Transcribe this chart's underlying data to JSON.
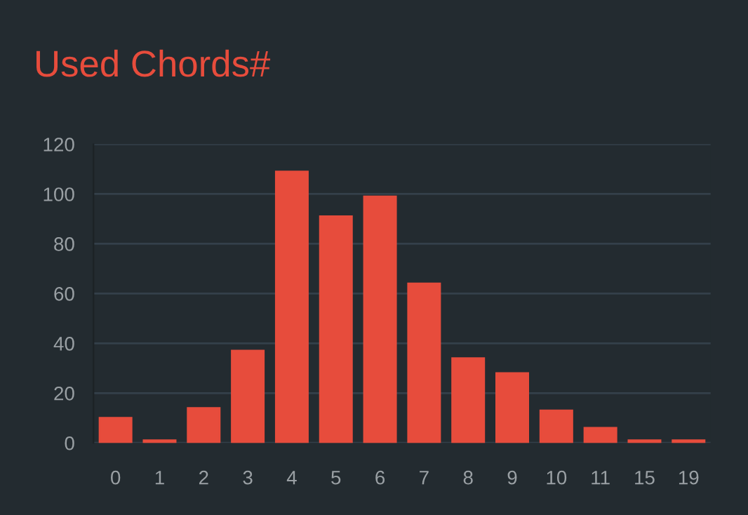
{
  "chart_data": {
    "type": "bar",
    "title": "Used Chords#",
    "categories": [
      "0",
      "1",
      "2",
      "3",
      "4",
      "5",
      "6",
      "7",
      "8",
      "9",
      "10",
      "11",
      "15",
      "19"
    ],
    "values": [
      10,
      1,
      14,
      37,
      109,
      91,
      99,
      64,
      34,
      28,
      13,
      6,
      1,
      1
    ],
    "color": "#e74c3c",
    "ylim": [
      0,
      120
    ],
    "yticks": [
      0,
      20,
      40,
      60,
      80,
      100,
      120
    ],
    "grid": "y",
    "legend": false
  }
}
